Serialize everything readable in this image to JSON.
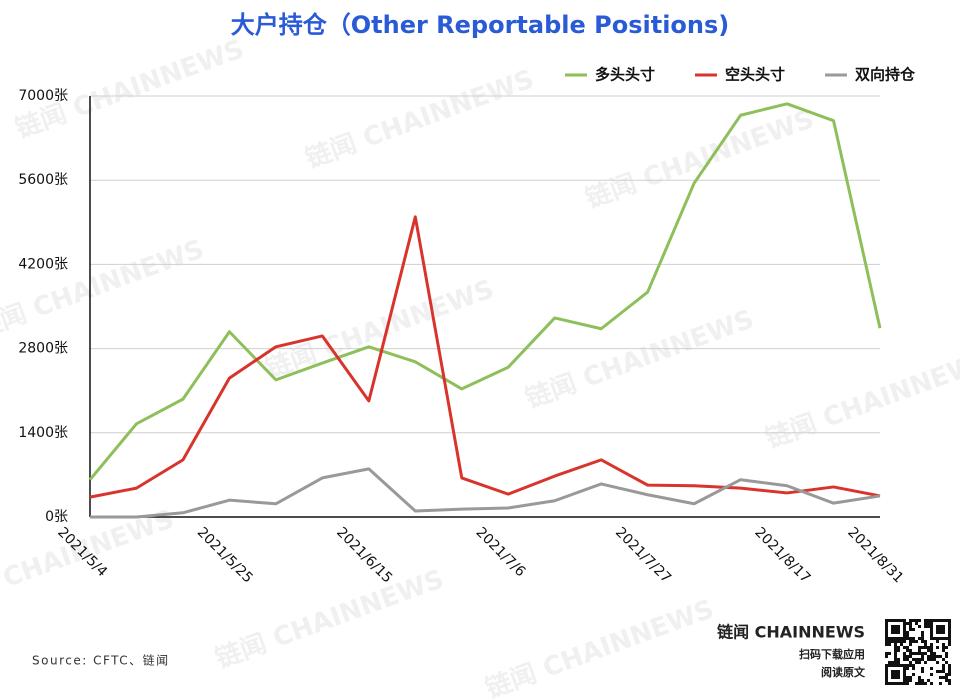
{
  "chart_data": {
    "type": "line",
    "title": "大户持仓（Other Reportable Positions)",
    "categories": [
      "2021/5/4",
      null,
      null,
      "2021/5/25",
      null,
      null,
      "2021/6/15",
      null,
      null,
      "2021/7/6",
      null,
      null,
      "2021/7/27",
      null,
      null,
      "2021/8/17",
      null,
      "2021/8/31"
    ],
    "series": [
      {
        "name": "多头头寸",
        "color": "#8dbf5a",
        "values": [
          620,
          1550,
          1960,
          3080,
          2280,
          2560,
          2830,
          2580,
          2130,
          2490,
          3310,
          3130,
          3740,
          5550,
          6680,
          6870,
          6590,
          3140
        ]
      },
      {
        "name": "空头头寸",
        "color": "#d8342c",
        "values": [
          330,
          480,
          950,
          2310,
          2830,
          3010,
          1930,
          4990,
          650,
          380,
          680,
          950,
          530,
          520,
          480,
          400,
          500,
          350
        ]
      },
      {
        "name": "双向持仓",
        "color": "#999999",
        "values": [
          0,
          0,
          70,
          280,
          220,
          650,
          800,
          100,
          130,
          150,
          270,
          550,
          370,
          220,
          620,
          520,
          230,
          350
        ]
      }
    ],
    "ylim": [
      0,
      7000
    ],
    "yticks": [
      {
        "value": 0,
        "label": "0张"
      },
      {
        "value": 1400,
        "label": "1400张"
      },
      {
        "value": 2800,
        "label": "2800张"
      },
      {
        "value": 4200,
        "label": "4200张"
      },
      {
        "value": 5600,
        "label": "5600张"
      },
      {
        "value": 7000,
        "label": "7000张"
      }
    ],
    "grid": true,
    "legend": "top-right",
    "source": "Source: CFTC、链闻",
    "brand": "链闻 CHAINNEWS",
    "qr_caption": [
      "扫码下载应用",
      "阅读原文"
    ],
    "watermark": "链闻 CHAINNEWS"
  }
}
